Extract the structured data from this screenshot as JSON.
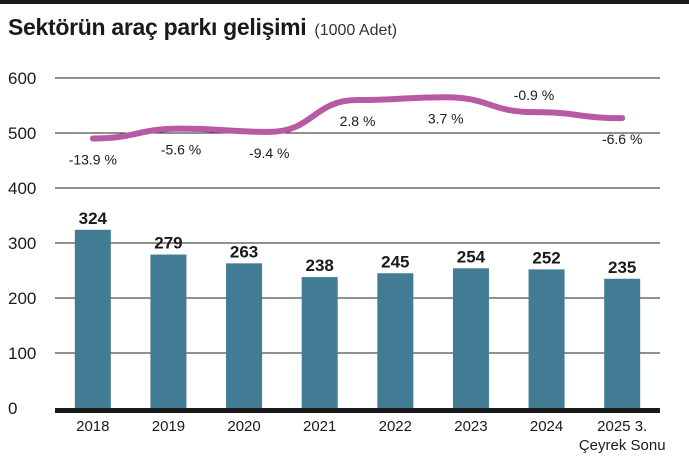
{
  "header": {
    "title": "Sektörün araç parkı gelişimi",
    "subtitle": "(1000 Adet)"
  },
  "chart_data": {
    "type": "bar",
    "title": "Sektörün araç parkı gelişimi",
    "subtitle": "(1000 Adet)",
    "categories": [
      "2018",
      "2019",
      "2020",
      "2021",
      "2022",
      "2023",
      "2024",
      "2025 3. Çeyrek Sonu"
    ],
    "category_lines": [
      [
        "2018"
      ],
      [
        "2019"
      ],
      [
        "2020"
      ],
      [
        "2021"
      ],
      [
        "2022"
      ],
      [
        "2023"
      ],
      [
        "2024"
      ],
      [
        "2025 3.",
        "Çeyrek Sonu"
      ]
    ],
    "values": [
      324,
      279,
      263,
      238,
      245,
      254,
      252,
      235
    ],
    "value_labels": [
      "324",
      "279",
      "263",
      "238",
      "245",
      "254",
      "252",
      "235"
    ],
    "line_series": {
      "values": [
        490,
        508,
        502,
        560,
        565,
        538,
        527
      ],
      "labels": [
        "-13.9 %",
        "-5.6 %",
        "-9.4 %",
        "2.8 %",
        "3.7 %",
        "-0.9 %",
        "-6.6 %"
      ],
      "label_positions": [
        "below",
        "below",
        "below",
        "below",
        "below",
        "above",
        "below"
      ]
    },
    "yticks": [
      0,
      100,
      200,
      300,
      400,
      500,
      600
    ],
    "ylim": [
      0,
      600
    ],
    "grid": true,
    "colors": {
      "bar": "#417b94",
      "line": "#b859a6",
      "axis": "#1a1a1a",
      "grid": "#222222"
    }
  }
}
